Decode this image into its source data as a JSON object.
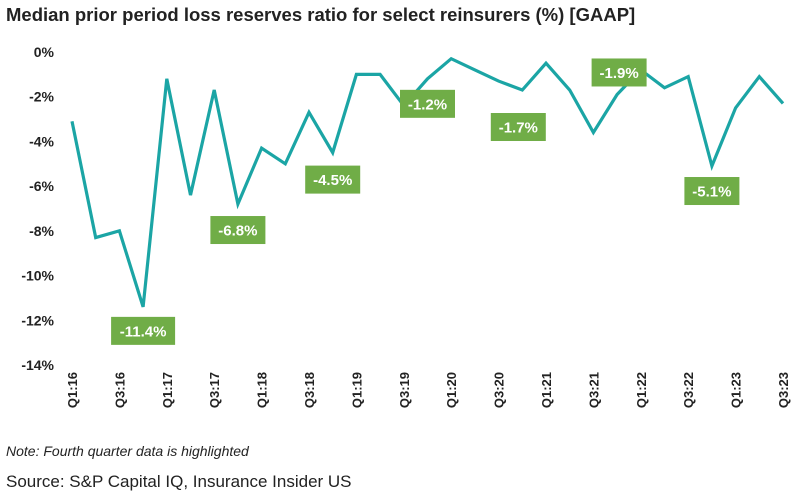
{
  "chart_data": {
    "type": "line",
    "title": "Median prior period loss reserves ratio for select reinsurers (%) [GAAP]",
    "note": "Note: Fourth quarter data is highlighted",
    "source": "Source: S&P Capital IQ, Insurance Insider US",
    "ylim": [
      -14,
      0
    ],
    "yticks": [
      "0%",
      "-2%",
      "-4%",
      "-6%",
      "-8%",
      "-10%",
      "-12%",
      "-14%"
    ],
    "ytick_values": [
      0,
      -2,
      -4,
      -6,
      -8,
      -10,
      -12,
      -14
    ],
    "x": [
      "Q1:16",
      "Q2:16",
      "Q3:16",
      "Q4:16",
      "Q1:17",
      "Q2:17",
      "Q3:17",
      "Q4:17",
      "Q1:18",
      "Q2:18",
      "Q3:18",
      "Q4:18",
      "Q1:19",
      "Q2:19",
      "Q3:19",
      "Q4:19",
      "Q1:20",
      "Q2:20",
      "Q3:20",
      "Q4:20",
      "Q1:21",
      "Q2:21",
      "Q3:21",
      "Q4:21",
      "Q1:22",
      "Q2:22",
      "Q3:22",
      "Q4:22",
      "Q1:23",
      "Q2:23",
      "Q3:23"
    ],
    "xtick_labels": [
      "Q1:16",
      "Q3:16",
      "Q1:17",
      "Q3:17",
      "Q1:18",
      "Q3:18",
      "Q1:19",
      "Q3:19",
      "Q1:20",
      "Q3:20",
      "Q1:21",
      "Q3:21",
      "Q1:22",
      "Q3:22",
      "Q1:23",
      "Q3:23"
    ],
    "values": [
      -3.1,
      -8.3,
      -8.0,
      -11.4,
      -1.2,
      -6.4,
      -1.7,
      -6.8,
      -4.3,
      -5.0,
      -2.7,
      -4.5,
      -1.0,
      -1.0,
      -2.4,
      -1.2,
      -0.3,
      -0.8,
      -1.3,
      -1.7,
      -0.5,
      -1.7,
      -3.6,
      -1.9,
      -0.8,
      -1.6,
      -1.1,
      -5.1,
      -2.5,
      -1.1,
      -2.3
    ],
    "data_labels": [
      {
        "index": 3,
        "text": "-11.4%"
      },
      {
        "index": 7,
        "text": "-6.8%"
      },
      {
        "index": 11,
        "text": "-4.5%"
      },
      {
        "index": 15,
        "text": "-1.2%"
      },
      {
        "index": 19,
        "text": "-1.7%"
      },
      {
        "index": 23,
        "text": "-1.9%"
      },
      {
        "index": 27,
        "text": "-5.1%"
      }
    ],
    "grid": false,
    "colors": {
      "line": "#1BA5A5",
      "label_bg": "#70AD47",
      "label_text": "#FFFFFF"
    }
  }
}
